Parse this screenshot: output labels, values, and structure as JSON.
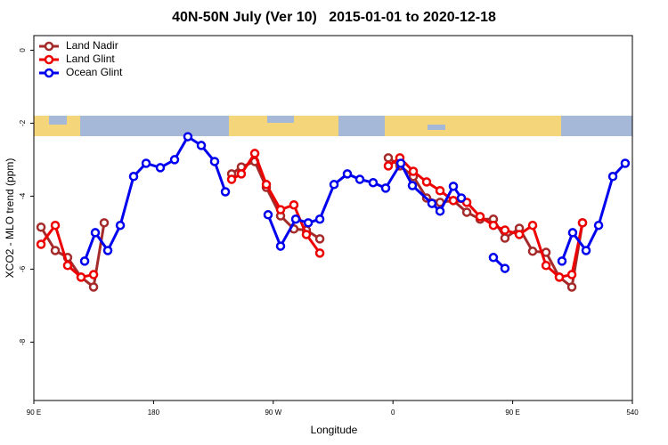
{
  "chart_data": {
    "type": "line",
    "title": "40N-50N July (Ver 10)   2015-01-01 to 2020-12-18",
    "x_label": "Longitude",
    "y_label": "XCO2 - MLO trend (ppm)",
    "xlim": [
      90,
      540
    ],
    "xticks": [
      {
        "value": 90,
        "label": "90 E"
      },
      180,
      {
        "value": 270,
        "label": "90 W"
      },
      {
        "value": 360,
        "label": "0"
      },
      {
        "value": 450,
        "label": "90 E"
      },
      540
    ],
    "ylim": [
      -9.6,
      0.4
    ],
    "yticks": [
      0,
      -2,
      -4,
      -6,
      -8
    ],
    "legend": "top-left",
    "series": [
      {
        "name": "Land Nadir",
        "color": "#a52a2a",
        "x": [
          95.4,
          106.1,
          115.4,
          125.5,
          134.9,
          142.9,
          null,
          238.7,
          246,
          256.1,
          264.8,
          275.5,
          285.5,
          294.9,
          305,
          null,
          356.5,
          365.2,
          375.3,
          385.3,
          395.4,
          405.4,
          415.5,
          425.5,
          435.5,
          444.2,
          455,
          465,
          475.1,
          485.1,
          494.5,
          502.5
        ],
        "values": [
          -4.85,
          -5.49,
          -5.68,
          -6.22,
          -6.49,
          -4.73,
          null,
          -3.39,
          -3.2,
          -3.05,
          -3.76,
          -4.54,
          -4.9,
          -4.93,
          -5.17,
          null,
          -2.95,
          -3.17,
          -3.46,
          -4.05,
          -4.17,
          -4.12,
          -4.44,
          -4.63,
          -4.63,
          -5.15,
          -4.88,
          -5.51,
          -5.54,
          -6.22,
          -6.49,
          -4.73
        ]
      },
      {
        "name": "Land Glint",
        "color": "#ee0000",
        "x": [
          95.4,
          106.1,
          115.4,
          125.5,
          134.9,
          null,
          238.7,
          246,
          256.1,
          264.8,
          275.5,
          285.5,
          294.9,
          305,
          null,
          356.5,
          365.2,
          375.3,
          385.3,
          395.4,
          405.4,
          415.5,
          425.5,
          435.5,
          444.2,
          455,
          465,
          475.1,
          485.1,
          494.5,
          502.5
        ],
        "values": [
          -5.32,
          -4.8,
          -5.9,
          -6.22,
          -6.15,
          null,
          -3.54,
          -3.39,
          -2.83,
          -3.68,
          -4.37,
          -4.24,
          -5.05,
          -5.56,
          null,
          -3.17,
          -2.95,
          -3.32,
          -3.61,
          -3.85,
          -4.12,
          -4.17,
          -4.56,
          -4.8,
          -4.93,
          -5.05,
          -4.8,
          -5.9,
          -6.22,
          -6.15,
          -4.73
        ]
      },
      {
        "name": "Ocean Glint",
        "color": "#0000ee",
        "x": [
          128.2,
          136.2,
          145.6,
          155,
          165,
          174.4,
          185.1,
          195.8,
          205.8,
          215.9,
          225.9,
          234,
          null,
          266.1,
          275.5,
          286.9,
          296.3,
          305,
          315.7,
          325.7,
          335.1,
          345.1,
          354.5,
          365.9,
          374.6,
          389.3,
          395.4,
          405.4,
          411.4,
          null,
          435.5,
          444.2,
          null,
          487.1,
          495.1,
          505.2,
          514.6,
          525.3,
          534.6
        ],
        "values": [
          -5.78,
          -5.0,
          -5.49,
          -4.8,
          -3.46,
          -3.1,
          -3.22,
          -3.0,
          -2.37,
          -2.61,
          -3.05,
          -3.88,
          null,
          -4.51,
          -5.37,
          -4.63,
          -4.73,
          -4.63,
          -3.68,
          -3.39,
          -3.54,
          -3.63,
          -3.78,
          -3.1,
          -3.71,
          -4.2,
          -4.41,
          -3.73,
          -4.05,
          null,
          -5.68,
          -5.98,
          null,
          -5.78,
          -5.0,
          -5.49,
          -4.8,
          -3.46,
          -3.1
        ]
      }
    ]
  }
}
